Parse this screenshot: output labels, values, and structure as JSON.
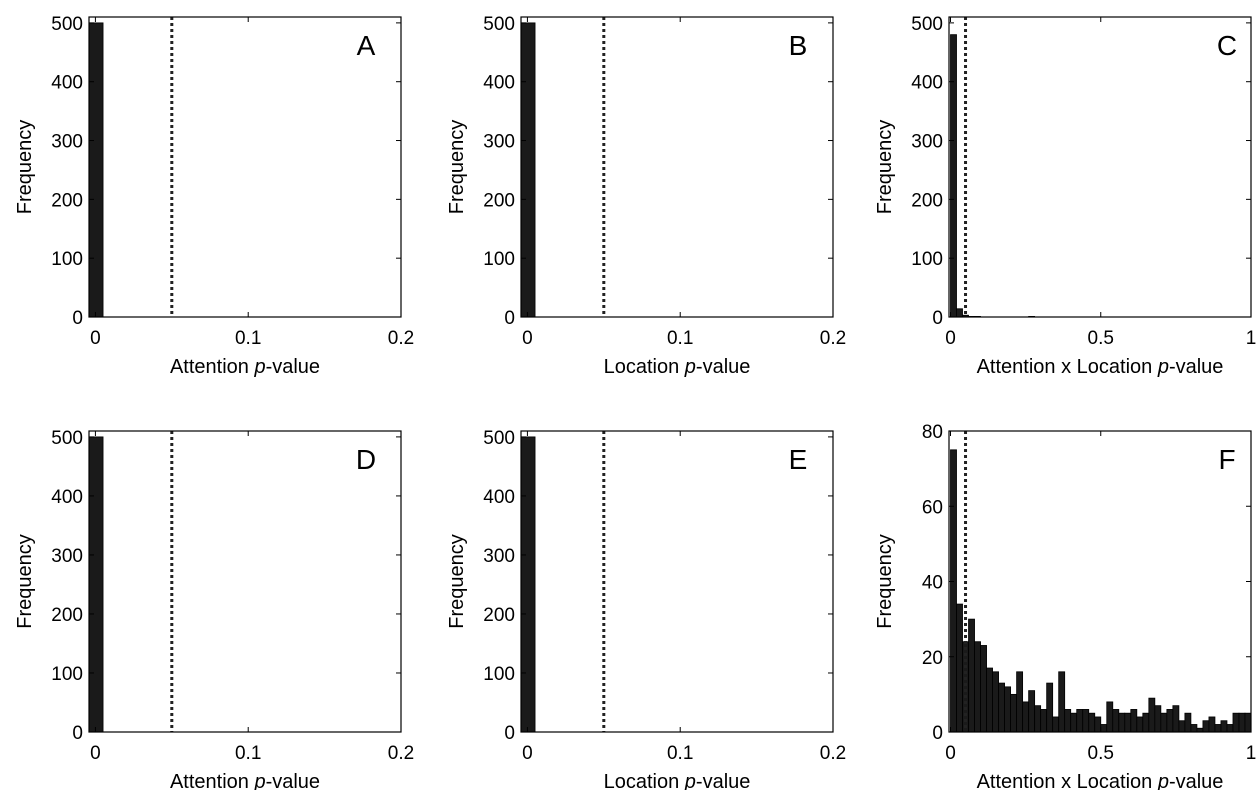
{
  "chart_data": [
    {
      "panel": "A",
      "type": "bar",
      "xlabel": "Attention  p-value",
      "xlabel_plain": "Attention  ",
      "xlabel_italic": "p",
      "xlabel_suffix": "-value",
      "ylabel": "Frequency",
      "xlim": [
        -0.0042,
        0.2
      ],
      "ylim": [
        0,
        510
      ],
      "xticks": [
        0,
        0.1,
        0.2
      ],
      "xtick_labels": [
        "0",
        "0.1",
        "0.2"
      ],
      "yticks": [
        0,
        100,
        200,
        300,
        400,
        500
      ],
      "ytick_labels": [
        "0",
        "100",
        "200",
        "300",
        "400",
        "500"
      ],
      "bin_width": 0.01,
      "bin_edges_start": -0.005,
      "bin_values": [
        500
      ],
      "threshold": 0.05
    },
    {
      "panel": "B",
      "type": "bar",
      "xlabel": "Location  p-value",
      "xlabel_plain": "Location  ",
      "xlabel_italic": "p",
      "xlabel_suffix": "-value",
      "ylabel": "Frequency",
      "xlim": [
        -0.0042,
        0.2
      ],
      "ylim": [
        0,
        510
      ],
      "xticks": [
        0,
        0.1,
        0.2
      ],
      "xtick_labels": [
        "0",
        "0.1",
        "0.2"
      ],
      "yticks": [
        0,
        100,
        200,
        300,
        400,
        500
      ],
      "ytick_labels": [
        "0",
        "100",
        "200",
        "300",
        "400",
        "500"
      ],
      "bin_width": 0.01,
      "bin_edges_start": -0.005,
      "bin_values": [
        500
      ],
      "threshold": 0.05
    },
    {
      "panel": "C",
      "type": "bar",
      "xlabel": "Attention x Location p-value",
      "xlabel_plain": "Attention x Location ",
      "xlabel_italic": "p",
      "xlabel_suffix": "-value",
      "ylabel": "Frequency",
      "xlim": [
        -0.005,
        1
      ],
      "ylim": [
        0,
        510
      ],
      "xticks": [
        0,
        0.5,
        1
      ],
      "xtick_labels": [
        "0",
        "0.5",
        "1"
      ],
      "yticks": [
        0,
        100,
        200,
        300,
        400,
        500
      ],
      "ytick_labels": [
        "0",
        "100",
        "200",
        "300",
        "400",
        "500"
      ],
      "bin_width": 0.02,
      "bin_edges_start": 0,
      "bin_values": [
        480,
        14,
        3,
        1,
        1,
        0,
        0,
        0,
        0,
        0,
        0,
        0,
        0,
        1,
        0,
        0,
        0,
        0,
        0,
        0,
        0,
        0,
        0,
        0,
        0,
        0,
        0,
        0,
        0,
        0,
        0,
        0,
        0,
        0,
        0,
        0,
        0,
        0,
        0,
        0,
        0,
        0,
        0,
        0,
        0,
        0,
        0,
        0,
        0,
        0
      ],
      "threshold": 0.05
    },
    {
      "panel": "D",
      "type": "bar",
      "xlabel": "Attention  p-value",
      "xlabel_plain": "Attention  ",
      "xlabel_italic": "p",
      "xlabel_suffix": "-value",
      "ylabel": "Frequency",
      "xlim": [
        -0.0042,
        0.2
      ],
      "ylim": [
        0,
        510
      ],
      "xticks": [
        0,
        0.1,
        0.2
      ],
      "xtick_labels": [
        "0",
        "0.1",
        "0.2"
      ],
      "yticks": [
        0,
        100,
        200,
        300,
        400,
        500
      ],
      "ytick_labels": [
        "0",
        "100",
        "200",
        "300",
        "400",
        "500"
      ],
      "bin_width": 0.01,
      "bin_edges_start": -0.005,
      "bin_values": [
        500
      ],
      "threshold": 0.05
    },
    {
      "panel": "E",
      "type": "bar",
      "xlabel": "Location  p-value",
      "xlabel_plain": "Location  ",
      "xlabel_italic": "p",
      "xlabel_suffix": "-value",
      "ylabel": "Frequency",
      "xlim": [
        -0.0042,
        0.2
      ],
      "ylim": [
        0,
        510
      ],
      "xticks": [
        0,
        0.1,
        0.2
      ],
      "xtick_labels": [
        "0",
        "0.1",
        "0.2"
      ],
      "yticks": [
        0,
        100,
        200,
        300,
        400,
        500
      ],
      "ytick_labels": [
        "0",
        "100",
        "200",
        "300",
        "400",
        "500"
      ],
      "bin_width": 0.01,
      "bin_edges_start": -0.005,
      "bin_values": [
        500
      ],
      "threshold": 0.05
    },
    {
      "panel": "F",
      "type": "bar",
      "xlabel": "Attention x Location p-value",
      "xlabel_plain": "Attention x Location ",
      "xlabel_italic": "p",
      "xlabel_suffix": "-value",
      "ylabel": "Frequency",
      "xlim": [
        -0.005,
        1
      ],
      "ylim": [
        0,
        80
      ],
      "xticks": [
        0,
        0.5,
        1
      ],
      "xtick_labels": [
        "0",
        "0.5",
        "1"
      ],
      "yticks": [
        0,
        20,
        40,
        60,
        80
      ],
      "ytick_labels": [
        "0",
        "20",
        "40",
        "60",
        "80"
      ],
      "bin_width": 0.02,
      "bin_edges_start": 0,
      "bin_values": [
        75,
        34,
        24,
        30,
        24,
        23,
        17,
        16,
        13,
        12,
        10,
        16,
        8,
        11,
        7,
        6,
        13,
        4,
        16,
        6,
        5,
        6,
        6,
        5,
        4,
        2,
        8,
        6,
        5,
        5,
        6,
        4,
        5,
        9,
        7,
        5,
        6,
        7,
        3,
        5,
        2,
        1,
        3,
        4,
        2,
        3,
        2,
        5,
        5,
        5
      ],
      "threshold": 0.05
    }
  ]
}
